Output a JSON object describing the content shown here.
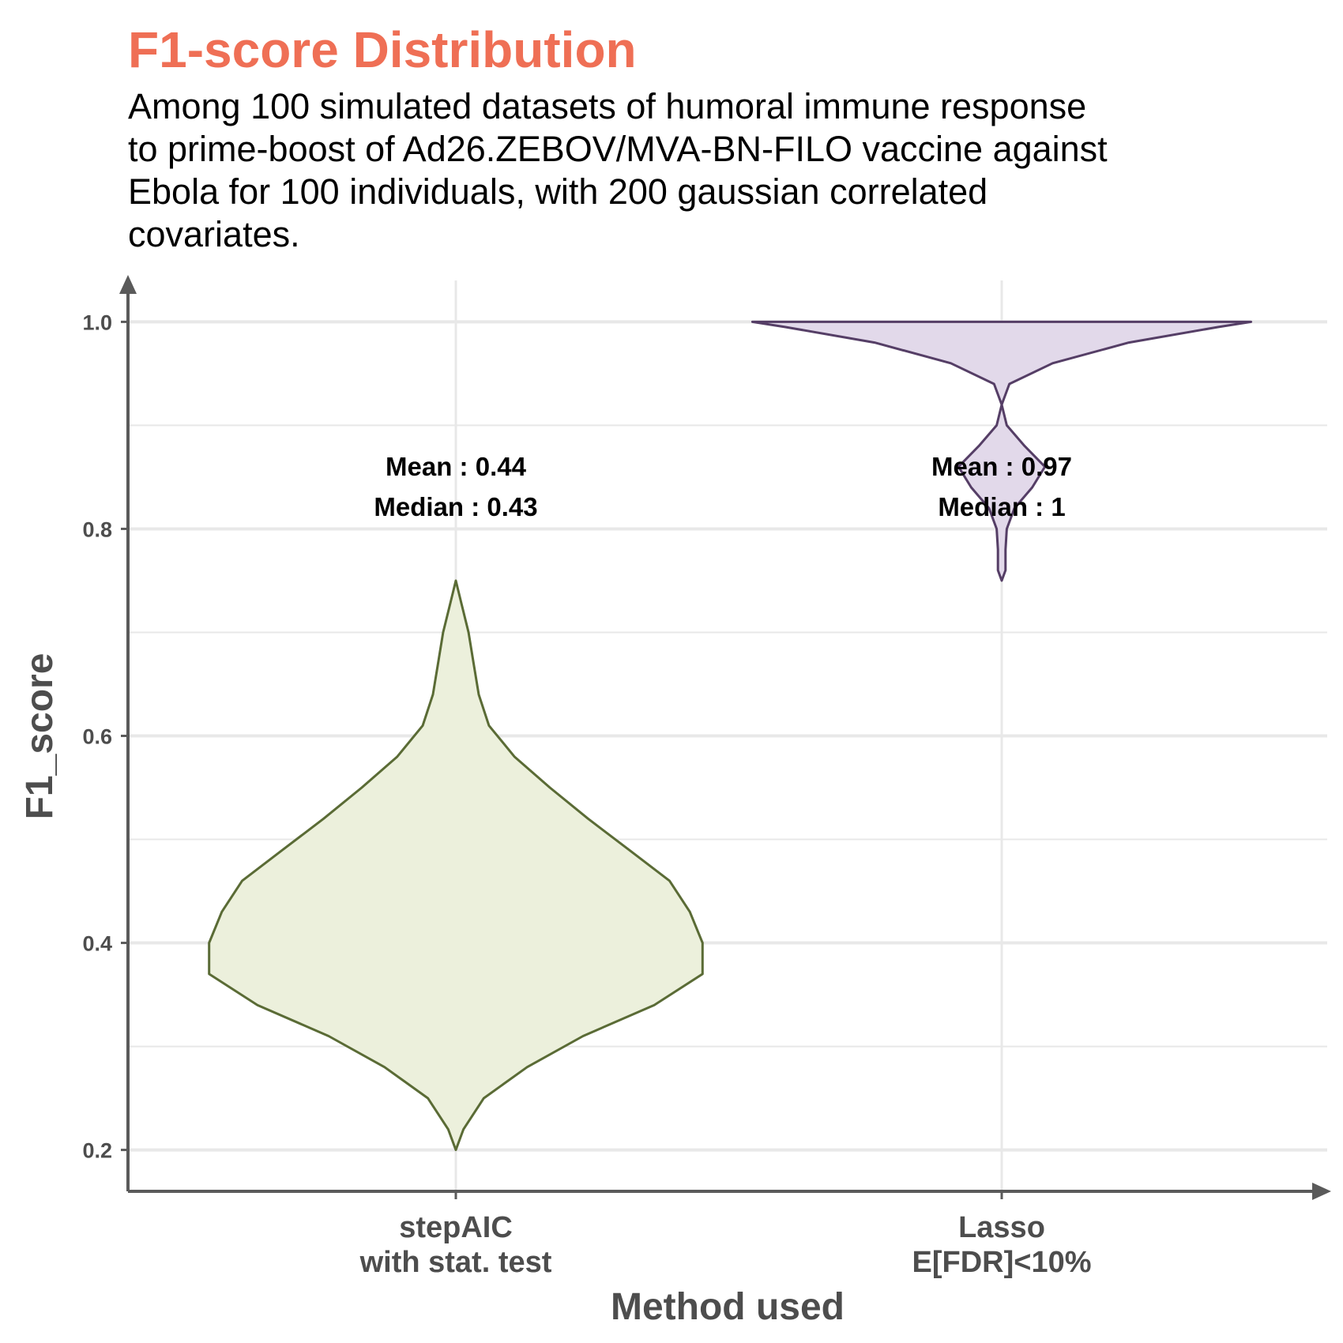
{
  "chart_data": {
    "type": "violin",
    "title": "F1-score Distribution",
    "subtitle": [
      "Among 100 simulated datasets of humoral immune response",
      "to prime-boost of Ad26.ZEBOV/MVA-BN-FILO vaccine against",
      "Ebola for 100 individuals, with 200 gaussian correlated",
      "covariates."
    ],
    "xlabel": "Method used",
    "ylabel": "F1_score",
    "ylim": [
      0.16,
      1.04
    ],
    "yticks": [
      "0.2",
      "0.4",
      "0.6",
      "0.8",
      "1.0"
    ],
    "grid": true,
    "categories": [
      {
        "label_lines": [
          "stepAIC",
          "with stat. test"
        ]
      },
      {
        "label_lines": [
          "Lasso",
          "E[FDR]<10%"
        ]
      }
    ],
    "series": [
      {
        "category": 0,
        "mean_text": "Mean : 0.44",
        "median_text": "Median : 0.43",
        "fill": "#ecf0dc",
        "stroke": "#5a6b35",
        "density": [
          [
            0.2,
            0.0
          ],
          [
            0.22,
            0.03
          ],
          [
            0.25,
            0.11
          ],
          [
            0.28,
            0.28
          ],
          [
            0.31,
            0.5
          ],
          [
            0.34,
            0.78
          ],
          [
            0.37,
            0.97
          ],
          [
            0.4,
            0.97
          ],
          [
            0.43,
            0.92
          ],
          [
            0.46,
            0.84
          ],
          [
            0.49,
            0.68
          ],
          [
            0.52,
            0.52
          ],
          [
            0.55,
            0.37
          ],
          [
            0.58,
            0.23
          ],
          [
            0.61,
            0.13
          ],
          [
            0.64,
            0.09
          ],
          [
            0.67,
            0.07
          ],
          [
            0.7,
            0.05
          ],
          [
            0.73,
            0.02
          ],
          [
            0.75,
            0.0
          ]
        ]
      },
      {
        "category": 1,
        "mean_text": "Mean : 0.97",
        "median_text": "Median : 1",
        "fill": "#e2d9ea",
        "stroke": "#553e66",
        "density": [
          [
            0.75,
            0.0
          ],
          [
            0.76,
            0.015
          ],
          [
            0.78,
            0.015
          ],
          [
            0.8,
            0.02
          ],
          [
            0.82,
            0.05
          ],
          [
            0.84,
            0.12
          ],
          [
            0.86,
            0.17
          ],
          [
            0.88,
            0.09
          ],
          [
            0.9,
            0.02
          ],
          [
            0.92,
            0.0
          ],
          [
            0.94,
            0.03
          ],
          [
            0.96,
            0.2
          ],
          [
            0.98,
            0.5
          ],
          [
            0.995,
            0.85
          ],
          [
            1.0,
            0.98
          ]
        ]
      }
    ]
  },
  "colors": {
    "title": "#ef6f55",
    "axis": "#5a5a5a",
    "grid": "#e8e8e8"
  }
}
